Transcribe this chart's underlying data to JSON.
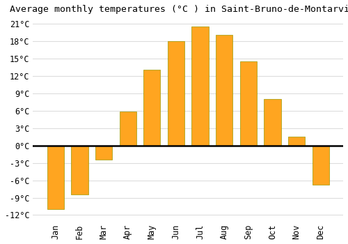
{
  "title": "Average monthly temperatures (°C ) in Saint-Bruno-de-Montarville",
  "months": [
    "Jan",
    "Feb",
    "Mar",
    "Apr",
    "May",
    "Jun",
    "Jul",
    "Aug",
    "Sep",
    "Oct",
    "Nov",
    "Dec"
  ],
  "values": [
    -11.0,
    -8.5,
    -2.5,
    5.8,
    13.0,
    18.0,
    20.5,
    19.0,
    14.5,
    8.0,
    1.5,
    -6.8
  ],
  "bar_color": "#FFA520",
  "bar_edge_color": "#999900",
  "background_color": "#FFFFFF",
  "plot_bg_color": "#FFFFFF",
  "grid_color": "#DDDDDD",
  "yticks": [
    -12,
    -9,
    -6,
    -3,
    0,
    3,
    6,
    9,
    12,
    15,
    18,
    21
  ],
  "ylim": [
    -13,
    22
  ],
  "title_fontsize": 9.5,
  "tick_fontsize": 8.5,
  "font_family": "monospace"
}
